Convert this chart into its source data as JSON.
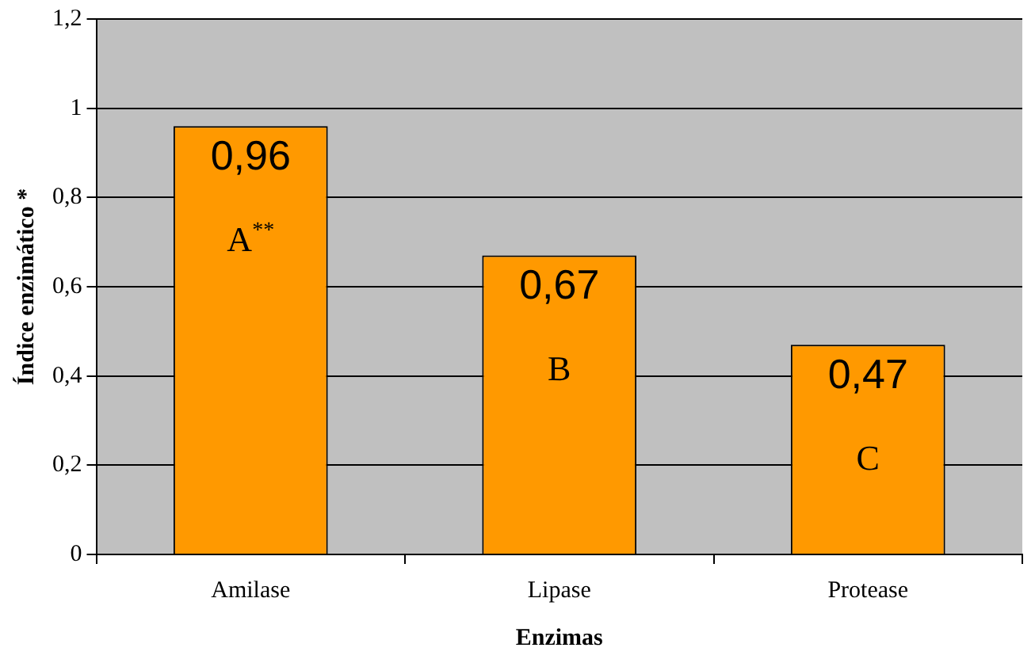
{
  "chart_data": {
    "type": "bar",
    "xlabel": "Enzimas",
    "ylabel": "Índice enzimático *",
    "categories": [
      "Amilase",
      "Lipase",
      "Protease"
    ],
    "values": [
      0.96,
      0.67,
      0.47
    ],
    "value_labels": [
      "0,96",
      "0,67",
      "0,47"
    ],
    "color": "#ff9900",
    "ylim": [
      0,
      1.2
    ],
    "yticks": [
      0,
      {
        "value": 0.2,
        "label": "0,2"
      },
      {
        "value": 0.4,
        "label": "0,4"
      },
      {
        "value": 0.6,
        "label": "0,6"
      },
      {
        "value": 0.8,
        "label": "0,8"
      },
      1,
      {
        "value": 1.2,
        "label": "1,2"
      }
    ],
    "grid": "y",
    "annotations": [
      "A$^{**}$",
      "B",
      "C"
    ]
  }
}
